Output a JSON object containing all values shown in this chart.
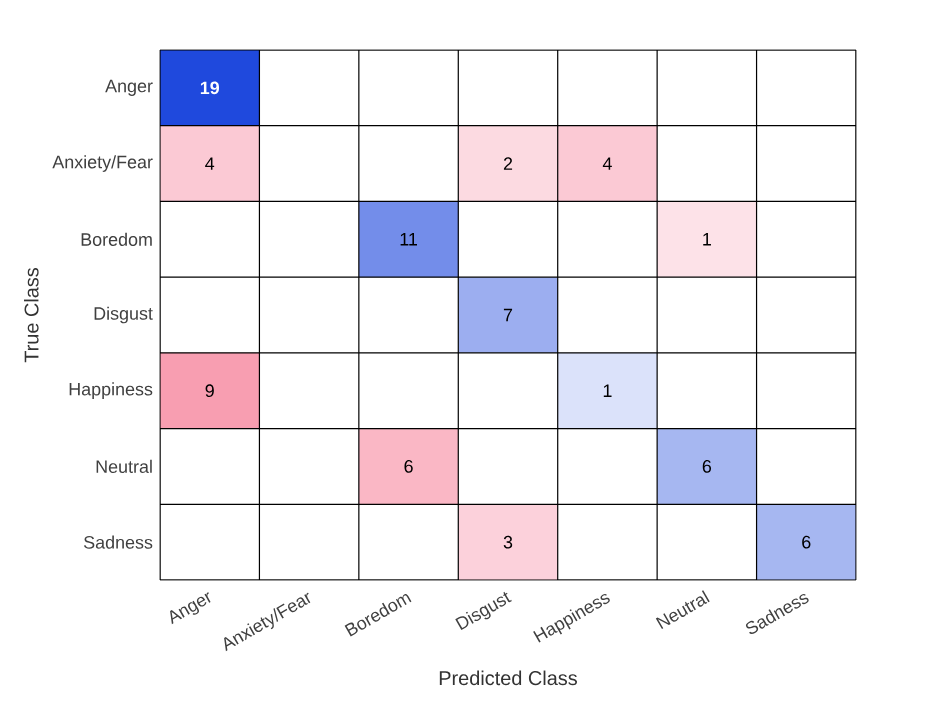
{
  "chart_data": {
    "type": "heatmap",
    "xlabel": "Predicted Class",
    "ylabel": "True Class",
    "categories": [
      "Anger",
      "Anxiety/Fear",
      "Boredom",
      "Disgust",
      "Happiness",
      "Neutral",
      "Sadness"
    ],
    "data_labels": true,
    "y_categories": [
      "Anger",
      "Anxiety/Fear",
      "Boredom",
      "Disgust",
      "Happiness",
      "Neutral",
      "Sadness"
    ],
    "cells": [
      [
        19,
        null,
        null,
        null,
        null,
        null,
        null
      ],
      [
        4,
        null,
        null,
        2,
        4,
        null,
        null
      ],
      [
        null,
        null,
        11,
        null,
        null,
        1,
        null
      ],
      [
        null,
        null,
        null,
        7,
        null,
        null,
        null
      ],
      [
        9,
        null,
        null,
        null,
        1,
        null,
        null
      ],
      [
        null,
        null,
        6,
        null,
        null,
        6,
        null
      ],
      [
        null,
        null,
        null,
        3,
        null,
        null,
        6
      ]
    ]
  }
}
